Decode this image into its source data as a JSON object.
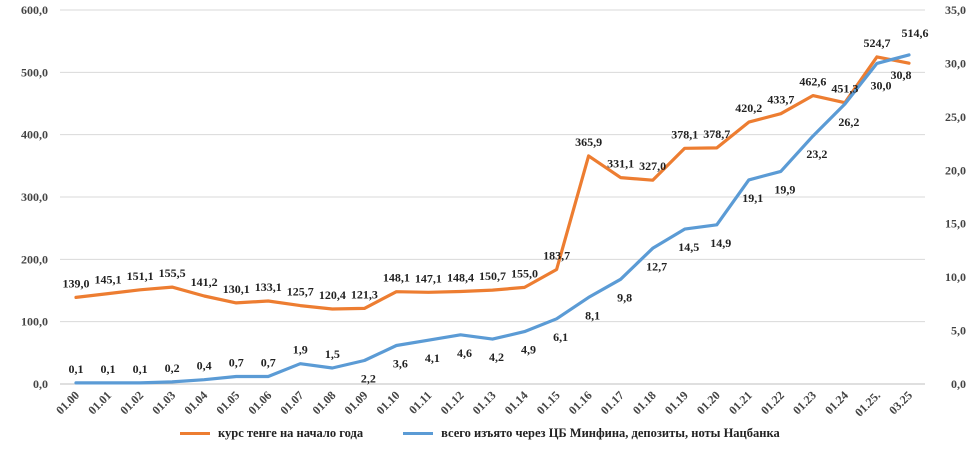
{
  "chart_data": {
    "type": "line",
    "categories": [
      "01.00",
      "01.01",
      "01.02",
      "01.03",
      "01.04",
      "01.05",
      "01.06",
      "01.07",
      "01.08",
      "01.09",
      "01.10",
      "01.11",
      "01.12",
      "01.13",
      "01.14",
      "01.15",
      "01.16",
      "01.17",
      "01.18",
      "01.19",
      "01.20",
      "01.21",
      "01.22",
      "01.23",
      "01.24",
      "01.25.",
      "03.25"
    ],
    "ylim_left": [
      0,
      600
    ],
    "yticks_left": [
      "0,0",
      "100,0",
      "200,0",
      "300,0",
      "400,0",
      "500,0",
      "600,0"
    ],
    "ylim_right": [
      0,
      35
    ],
    "yticks_right": [
      "0,0",
      "5,0",
      "10,0",
      "15,0",
      "20,0",
      "25,0",
      "30,0",
      "35,0"
    ],
    "grid": "horizontal",
    "legend_position": "bottom",
    "series": [
      {
        "name": "курс тенге на начало года",
        "axis": "left",
        "color": "#ed7d31",
        "values": [
          139.0,
          145.1,
          151.1,
          155.5,
          141.2,
          130.1,
          133.1,
          125.7,
          120.4,
          121.3,
          148.1,
          147.1,
          148.4,
          150.7,
          155.0,
          183.7,
          365.9,
          331.1,
          327.0,
          378.1,
          378.7,
          420.2,
          433.7,
          462.6,
          451.3,
          524.7,
          514.6
        ],
        "labels": [
          "139,0",
          "145,1",
          "151,1",
          "155,5",
          "141,2",
          "130,1",
          "133,1",
          "125,7",
          "120,4",
          "121,3",
          "148,1",
          "147,1",
          "148,4",
          "150,7",
          "155,0",
          "183,7",
          "365,9",
          "331,1",
          "327,0",
          "378,1",
          "378,7",
          "420,2",
          "433,7",
          "462,6",
          "451,3",
          "524,7",
          "514,6"
        ]
      },
      {
        "name": "всего изъято через ЦБ Минфина, депозиты, ноты Нацбанка",
        "axis": "right",
        "color": "#5b9bd5",
        "values": [
          0.1,
          0.1,
          0.1,
          0.2,
          0.4,
          0.7,
          0.7,
          1.9,
          1.5,
          2.2,
          3.6,
          4.1,
          4.6,
          4.2,
          4.9,
          6.1,
          8.1,
          9.8,
          12.7,
          14.5,
          14.9,
          19.1,
          19.9,
          23.2,
          26.2,
          30.0,
          30.8
        ],
        "labels": [
          "0,1",
          "0,1",
          "0,1",
          "0,2",
          "0,4",
          "0,7",
          "0,7",
          "1,9",
          "1,5",
          "2,2",
          "3,6",
          "4,1",
          "4,6",
          "4,2",
          "4,9",
          "6,1",
          "8,1",
          "9,8",
          "12,7",
          "14,5",
          "14,9",
          "19,1",
          "19,9",
          "23,2",
          "26,2",
          "30,0",
          "30,8"
        ]
      }
    ]
  }
}
